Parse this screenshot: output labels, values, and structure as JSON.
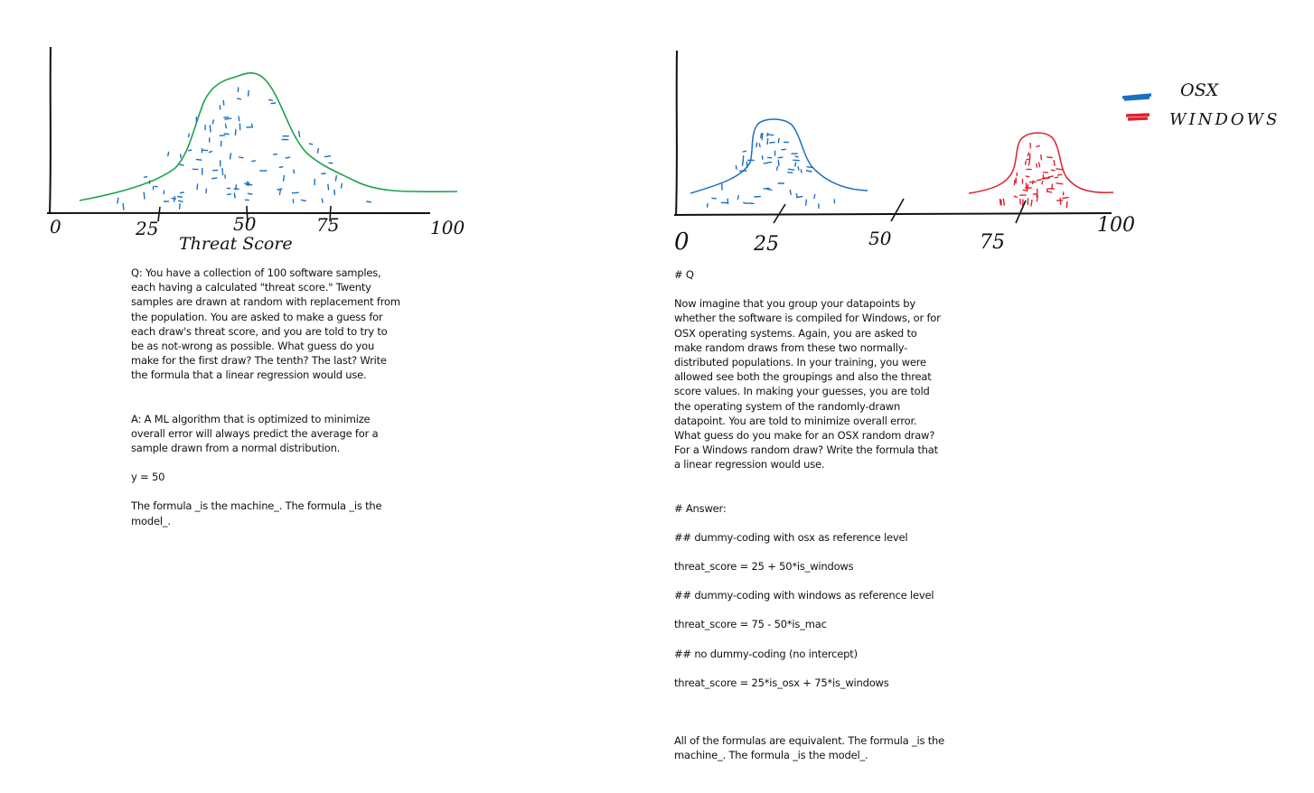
{
  "left_panel": {
    "axis_ticks": [
      "0",
      "25",
      "50",
      "75",
      "100"
    ],
    "axis_title": "Threat Score",
    "curve_color": "#1aa34a",
    "dot_color": "#1a6fc0",
    "question": "Q: You have a collection of 100 software samples, each having a calculated \"threat score.\" Twenty samples are drawn at random with replacement from the population. You are asked to make a guess for each draw's threat score, and you are told to try to be as not-wrong as possible. What guess do you make for the first draw? The tenth? The last? Write the formula that a linear regression would use.",
    "answer": "A: A ML algorithm that is optimized to minimize overall error will always predict the average for a sample drawn from a normal distribution.",
    "formula": "y = 50",
    "closing": "The formula _is the machine_. The formula _is the model_."
  },
  "right_panel": {
    "axis_ticks": [
      "0",
      "25",
      "50",
      "75",
      "100"
    ],
    "legend": [
      {
        "label": "OSX",
        "color": "#1a6fc0"
      },
      {
        "label": "WINDOWS",
        "color": "#e02030"
      }
    ],
    "question_heading": "# Q",
    "question": "Now imagine that you group your datapoints by whether the software is compiled for Windows, or for OSX operating systems. Again, you are asked to make random draws from these two normally-distributed populations. In your training, you were allowed see both the groupings and also the threat score values. In making your guesses, you are told the operating system of the randomly-drawn datapoint. You are told to minimize overall error. What guess do you make for an OSX random draw? For a Windows random draw? Write the formula that a linear regression would use.",
    "answer_heading": "# Answer:",
    "sections": [
      {
        "heading": "## dummy-coding with osx as reference level",
        "formula": "threat_score = 25 + 50*is_windows"
      },
      {
        "heading": "## dummy-coding with windows as reference level",
        "formula": "threat_score = 75 - 50*is_mac"
      },
      {
        "heading": "## no dummy-coding (no intercept)",
        "formula": "threat_score = 25*is_osx + 75*is_windows"
      }
    ],
    "closing": "All of the formulas are equivalent. The formula _is the machine_. The formula _is the model_."
  }
}
